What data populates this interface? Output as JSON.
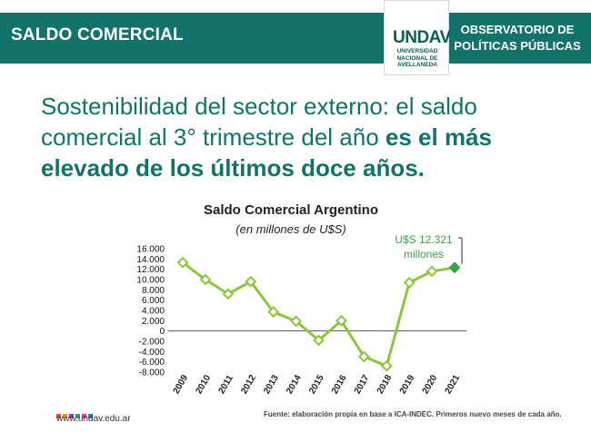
{
  "header": {
    "section_title": "SALDO COMERCIAL",
    "observatory_line1": "OBSERVATORIO DE",
    "observatory_line2": "POLÍTICAS PÚBLICAS",
    "logo_mark": "UNDAV",
    "logo_line1": "UNIVERSIDAD",
    "logo_line2": "NACIONAL DE",
    "logo_line3": "AVELLANEDA"
  },
  "headline": {
    "normal": "Sostenibilidad del sector externo: el saldo comercial al 3° trimestre del año ",
    "bold": "es el más elevado de los últimos doce años."
  },
  "chart_data": {
    "type": "line",
    "title": "Saldo Comercial Argentino",
    "subtitle": "(en millones de U$S)",
    "x": [
      "2009",
      "2010",
      "2011",
      "2012",
      "2013",
      "2014",
      "2015",
      "2016",
      "2017",
      "2018",
      "2019",
      "2020",
      "2021"
    ],
    "y": [
      13300,
      10000,
      7200,
      9600,
      3700,
      1900,
      -1800,
      2000,
      -5000,
      -6800,
      9400,
      11600,
      12321
    ],
    "ylim": [
      -8000,
      16000
    ],
    "yticks": [
      "16.000",
      "14.000",
      "12.000",
      "10.000",
      "8.000",
      "6.000",
      "4.000",
      "2.000",
      "0",
      "-2.000",
      "-4.000",
      "-6.000",
      "-8.000"
    ],
    "grid": false,
    "annotation_line1": "U$S 12.321",
    "annotation_line2": "millones",
    "line_color": "#8cc63f",
    "highlight_color": "#3aa146"
  },
  "footer": {
    "url": "www.undav.edu.ar",
    "source": "Fuente: elaboración propia en base a ICA-INDEC. Primeros nuevo meses de cada año.",
    "dot_colors": [
      "#e94e3d",
      "#f39c12",
      "#8e44ad",
      "#27ae60",
      "#e84393",
      "#2e86c1"
    ]
  },
  "colors": {
    "brand": "#13726a"
  }
}
